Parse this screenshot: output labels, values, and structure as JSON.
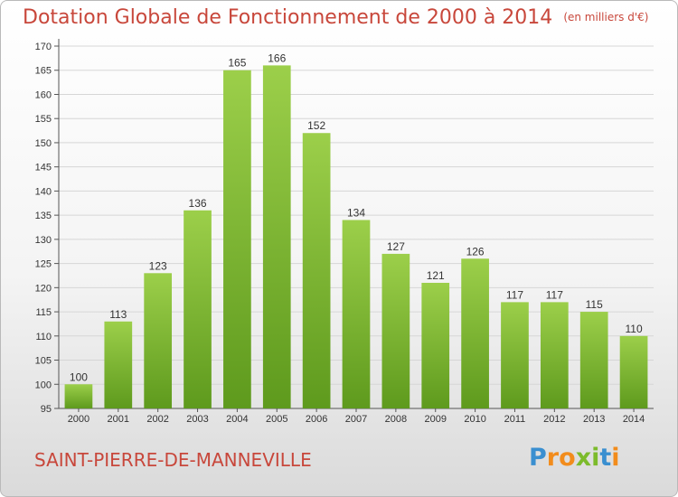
{
  "title": "Dotation Globale de Fonctionnement de 2000 à 2014",
  "unit": "(en milliers d'€)",
  "commune": "SAINT-PIERRE-DE-MANNEVILLE",
  "logo": {
    "letters": [
      "P",
      "r",
      "o",
      "x",
      "i",
      "t",
      "i"
    ],
    "colors": [
      "#3a8fd0",
      "#f28c1c",
      "#f28c1c",
      "#7cbb2b",
      "#7cbb2b",
      "#3a8fd0",
      "#f28c1c"
    ]
  },
  "colors": {
    "bar_top": "#9ccf4a",
    "bar_bottom": "#5e9a1d",
    "title": "#c8473b"
  },
  "chart_data": {
    "type": "bar",
    "categories": [
      "2000",
      "2001",
      "2002",
      "2003",
      "2004",
      "2005",
      "2006",
      "2007",
      "2008",
      "2009",
      "2010",
      "2011",
      "2012",
      "2013",
      "2014"
    ],
    "values": [
      100,
      113,
      123,
      136,
      165,
      166,
      152,
      134,
      127,
      121,
      126,
      117,
      117,
      115,
      110
    ],
    "ylim": [
      95,
      170
    ],
    "yticks": [
      95,
      100,
      105,
      110,
      115,
      120,
      125,
      130,
      135,
      140,
      145,
      150,
      155,
      160,
      165,
      170
    ],
    "grid": true,
    "legend": "none"
  }
}
